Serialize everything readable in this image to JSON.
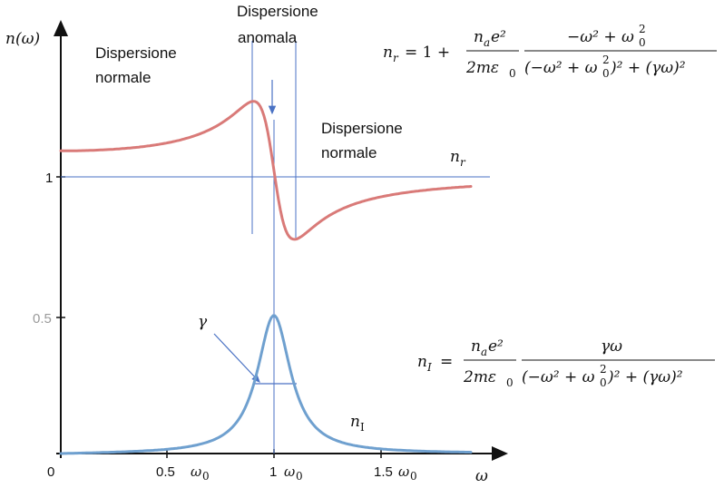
{
  "axes": {
    "y_label": "n(ω)",
    "x_label": "ω",
    "y_tick_1": "1",
    "y_tick_05": "0.5",
    "x_tick_0": "0",
    "x_tick_05": "0.5",
    "x_tick_1": "1",
    "x_tick_15": "1.5",
    "omega0": "ω",
    "omega0_sub": "0"
  },
  "annotations": {
    "normal_left_line1": "Dispersione",
    "normal_left_line2": "normale",
    "anomalous_line1": "Dispersione",
    "anomalous_line2": "anomala",
    "normal_right_line1": "Dispersione",
    "normal_right_line2": "normale",
    "gamma": "γ"
  },
  "curves": {
    "real_label": "n",
    "real_label_sub": "r",
    "imag_label": "n",
    "imag_label_sub": "I",
    "real_color": "#d97a78",
    "imag_color": "#6fa0cf",
    "guide_color": "#4a72c4"
  },
  "formulas": {
    "nr_lhs": "n",
    "nr_lhs_sub": "r",
    "nr_eq": "= 1 +",
    "nr_prefactor_num": "n",
    "nr_prefactor_num_sub": "a",
    "nr_prefactor_num_tail": "e²",
    "nr_prefactor_den": "2mε",
    "nr_prefactor_den_sub": "0",
    "nr_num": "−ω² + ω",
    "nr_num_sub": "0",
    "nr_num_sup": "2",
    "nr_den": "(−ω² + ω",
    "nr_den_sub": "0",
    "nr_den_tail": ")² + (γω)²",
    "nr_den_sup": "2",
    "ni_lhs": "n",
    "ni_lhs_sub": "I",
    "ni_eq": "=",
    "ni_prefactor_num": "n",
    "ni_prefactor_num_sub": "a",
    "ni_prefactor_num_tail": "e²",
    "ni_prefactor_den": "2mε",
    "ni_prefactor_den_sub": "0",
    "ni_num": "γω",
    "ni_den": "(−ω² + ω",
    "ni_den_sub": "0",
    "ni_den_tail": ")² + (γω)²",
    "ni_den_sup": "2"
  }
}
